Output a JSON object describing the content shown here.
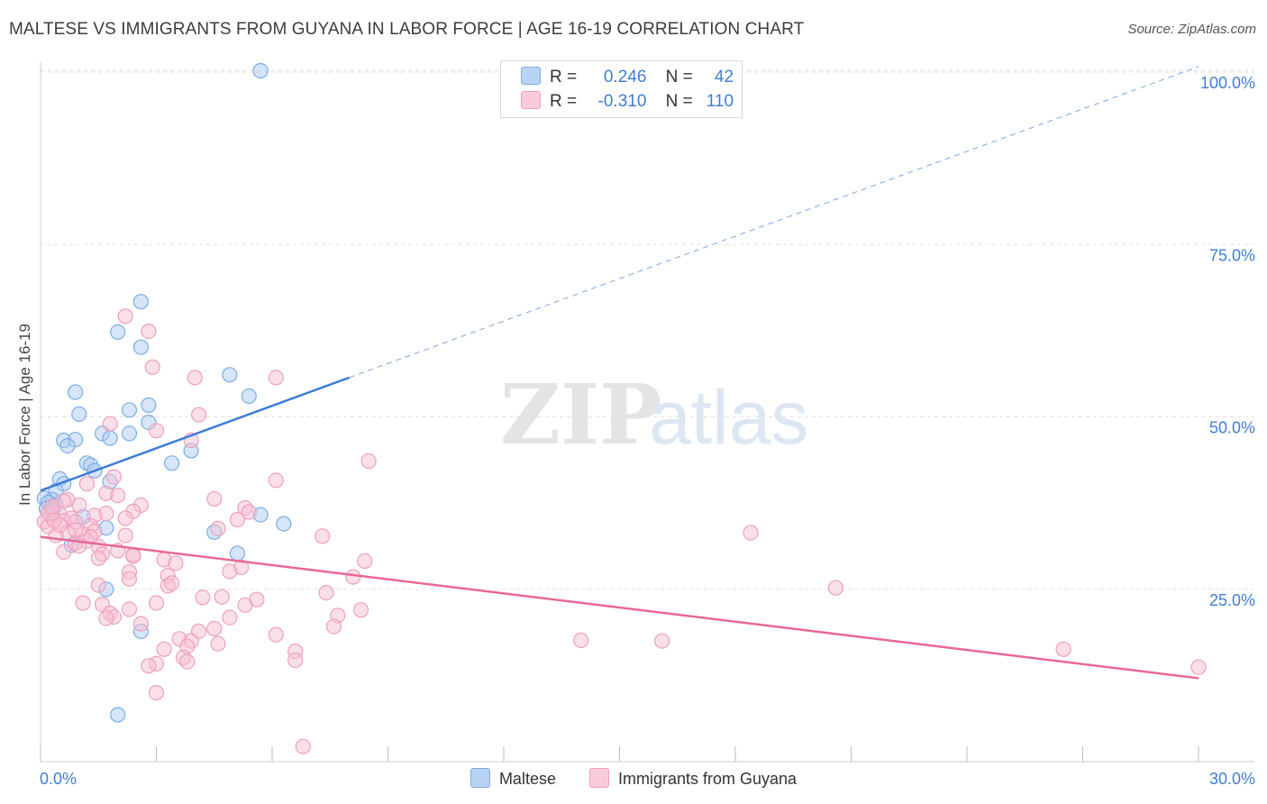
{
  "title": "MALTESE VS IMMIGRANTS FROM GUYANA IN LABOR FORCE | AGE 16-19 CORRELATION CHART",
  "source": "Source: ZipAtlas.com",
  "watermark": "ZIPatlas",
  "legend_stats": [
    {
      "r_label": "R =",
      "r_value": "0.246",
      "n_label": "N =",
      "n_value": "42",
      "color": "#7aaee8"
    },
    {
      "r_label": "R =",
      "r_value": "-0.310",
      "n_label": "N =",
      "n_value": "110",
      "color": "#f0a0bc"
    }
  ],
  "colors": {
    "blue": "#3d7dd6",
    "blue_fill": "#aecbf0",
    "pink": "#e8679a",
    "pink_fill": "#f6bfd3",
    "axis_text": "#3f7ed8",
    "grid": "#e2e2e2"
  },
  "chart_data": {
    "type": "scatter",
    "title": "MALTESE VS IMMIGRANTS FROM GUYANA IN LABOR FORCE | AGE 16-19 CORRELATION CHART",
    "xlabel": "",
    "ylabel": "In Labor Force | Age 16-19",
    "xlim": [
      0,
      30
    ],
    "ylim": [
      0,
      105
    ],
    "x_tick_labels": [
      "0.0%",
      "30.0%"
    ],
    "y_ticks": [
      25,
      50,
      75,
      100
    ],
    "y_tick_labels": [
      "25.0%",
      "50.0%",
      "75.0%",
      "100.0%"
    ],
    "grid": true,
    "legend_position": "bottom",
    "series": [
      {
        "name": "Maltese",
        "points": [
          [
            5.7,
            100.2
          ],
          [
            2.6,
            66.7
          ],
          [
            2.0,
            62.3
          ],
          [
            2.6,
            60.1
          ],
          [
            4.9,
            56.1
          ],
          [
            5.4,
            53.0
          ],
          [
            0.9,
            53.6
          ],
          [
            2.8,
            51.7
          ],
          [
            2.3,
            51.0
          ],
          [
            1.0,
            50.4
          ],
          [
            2.8,
            49.2
          ],
          [
            2.3,
            47.6
          ],
          [
            1.6,
            47.6
          ],
          [
            1.8,
            46.9
          ],
          [
            0.6,
            46.6
          ],
          [
            0.9,
            46.7
          ],
          [
            0.7,
            45.8
          ],
          [
            3.9,
            45.1
          ],
          [
            1.2,
            43.3
          ],
          [
            3.4,
            43.3
          ],
          [
            1.3,
            43.0
          ],
          [
            1.4,
            42.2
          ],
          [
            0.5,
            41.0
          ],
          [
            0.6,
            40.3
          ],
          [
            1.8,
            40.6
          ],
          [
            0.4,
            39.3
          ],
          [
            0.3,
            38.0
          ],
          [
            0.1,
            38.2
          ],
          [
            0.2,
            37.6
          ],
          [
            0.15,
            36.7
          ],
          [
            0.3,
            36.2
          ],
          [
            1.1,
            35.5
          ],
          [
            5.7,
            35.8
          ],
          [
            6.3,
            34.5
          ],
          [
            1.7,
            33.9
          ],
          [
            4.5,
            33.3
          ],
          [
            0.8,
            31.4
          ],
          [
            5.1,
            30.2
          ],
          [
            1.7,
            25.0
          ],
          [
            2.6,
            18.9
          ],
          [
            2.0,
            6.8
          ],
          [
            0.4,
            37.2
          ]
        ]
      },
      {
        "name": "Immigrants from Guyana",
        "points": [
          [
            2.2,
            64.6
          ],
          [
            2.8,
            62.4
          ],
          [
            2.9,
            57.2
          ],
          [
            4.0,
            55.7
          ],
          [
            6.1,
            55.7
          ],
          [
            4.1,
            50.3
          ],
          [
            1.8,
            49.0
          ],
          [
            3.0,
            48.0
          ],
          [
            3.9,
            46.6
          ],
          [
            8.5,
            43.6
          ],
          [
            1.9,
            41.3
          ],
          [
            6.1,
            40.8
          ],
          [
            1.2,
            40.3
          ],
          [
            1.7,
            38.9
          ],
          [
            2.0,
            38.6
          ],
          [
            4.5,
            38.1
          ],
          [
            0.7,
            38.0
          ],
          [
            0.6,
            37.8
          ],
          [
            1.0,
            37.2
          ],
          [
            2.6,
            37.2
          ],
          [
            5.3,
            36.8
          ],
          [
            0.3,
            36.5
          ],
          [
            2.4,
            36.3
          ],
          [
            1.7,
            36.0
          ],
          [
            0.5,
            35.9
          ],
          [
            0.25,
            35.7
          ],
          [
            1.4,
            35.7
          ],
          [
            2.2,
            35.3
          ],
          [
            0.8,
            35.3
          ],
          [
            0.1,
            34.8
          ],
          [
            0.6,
            34.9
          ],
          [
            0.9,
            34.8
          ],
          [
            5.1,
            35.1
          ],
          [
            1.3,
            34.2
          ],
          [
            0.2,
            34.1
          ],
          [
            4.6,
            33.8
          ],
          [
            0.7,
            33.2
          ],
          [
            1.4,
            33.4
          ],
          [
            1.1,
            33.0
          ],
          [
            0.4,
            32.8
          ],
          [
            7.3,
            32.7
          ],
          [
            18.4,
            33.2
          ],
          [
            1.2,
            32.0
          ],
          [
            0.9,
            31.7
          ],
          [
            1.5,
            31.2
          ],
          [
            2.0,
            30.6
          ],
          [
            0.6,
            30.4
          ],
          [
            1.6,
            30.1
          ],
          [
            2.4,
            30.0
          ],
          [
            1.5,
            29.5
          ],
          [
            3.2,
            29.3
          ],
          [
            3.5,
            28.8
          ],
          [
            8.4,
            29.1
          ],
          [
            5.2,
            28.2
          ],
          [
            4.9,
            27.6
          ],
          [
            2.3,
            27.5
          ],
          [
            3.3,
            27.0
          ],
          [
            8.1,
            26.8
          ],
          [
            2.3,
            26.5
          ],
          [
            1.5,
            25.6
          ],
          [
            3.3,
            25.5
          ],
          [
            3.4,
            25.9
          ],
          [
            20.6,
            25.2
          ],
          [
            7.4,
            24.5
          ],
          [
            4.2,
            23.8
          ],
          [
            4.7,
            23.9
          ],
          [
            5.6,
            23.5
          ],
          [
            1.1,
            23.0
          ],
          [
            3.0,
            23.0
          ],
          [
            5.3,
            22.7
          ],
          [
            1.6,
            22.8
          ],
          [
            8.3,
            22.0
          ],
          [
            2.3,
            22.1
          ],
          [
            1.8,
            21.5
          ],
          [
            7.7,
            21.2
          ],
          [
            1.9,
            21.0
          ],
          [
            1.7,
            20.8
          ],
          [
            4.9,
            20.9
          ],
          [
            2.6,
            20.0
          ],
          [
            7.6,
            19.6
          ],
          [
            4.5,
            19.3
          ],
          [
            4.1,
            18.9
          ],
          [
            6.1,
            18.4
          ],
          [
            3.6,
            17.8
          ],
          [
            14.0,
            17.6
          ],
          [
            16.1,
            17.5
          ],
          [
            3.9,
            17.5
          ],
          [
            4.6,
            17.1
          ],
          [
            3.8,
            16.7
          ],
          [
            3.2,
            16.3
          ],
          [
            6.6,
            16.0
          ],
          [
            26.5,
            16.3
          ],
          [
            3.7,
            15.1
          ],
          [
            6.6,
            14.7
          ],
          [
            3.8,
            14.5
          ],
          [
            3.0,
            14.2
          ],
          [
            2.8,
            13.9
          ],
          [
            30.0,
            13.7
          ],
          [
            3.0,
            10.0
          ],
          [
            6.8,
            2.2
          ],
          [
            0.2,
            36.0
          ],
          [
            0.35,
            35.0
          ],
          [
            0.5,
            34.3
          ],
          [
            0.9,
            33.6
          ],
          [
            1.3,
            32.6
          ],
          [
            2.2,
            32.8
          ],
          [
            0.3,
            37.0
          ],
          [
            1.0,
            31.3
          ],
          [
            2.4,
            29.8
          ],
          [
            5.4,
            36.2
          ]
        ]
      }
    ],
    "trend_lines": [
      {
        "series": "Maltese",
        "x": [
          0,
          8.0
        ],
        "y": [
          39.3,
          55.7
        ],
        "extension_x": [
          8.0,
          30.0
        ],
        "extension_y": [
          55.7,
          100.8
        ]
      },
      {
        "series": "Immigrants from Guyana",
        "x": [
          0,
          30.0
        ],
        "y": [
          32.6,
          12.1
        ]
      }
    ]
  }
}
